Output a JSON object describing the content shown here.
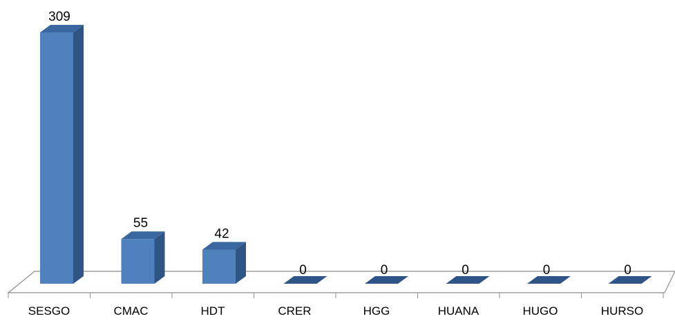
{
  "chart_data": {
    "type": "bar",
    "style": "3d-column",
    "categories": [
      "SESGO",
      "CMAC",
      "HDT",
      "CRER",
      "HGG",
      "HUANA",
      "HUGO",
      "HURSO"
    ],
    "values": [
      309,
      55,
      42,
      0,
      0,
      0,
      0,
      0
    ],
    "data_labels": [
      "309",
      "55",
      "42",
      "0",
      "0",
      "0",
      "0",
      "0"
    ],
    "ylim": [
      0,
      309
    ],
    "grid": false,
    "legend": "none",
    "colors": {
      "front": "#4f81bd",
      "side": "#2f5486",
      "top": "#3a67a0",
      "floor_line": "#8c8c8c"
    }
  }
}
